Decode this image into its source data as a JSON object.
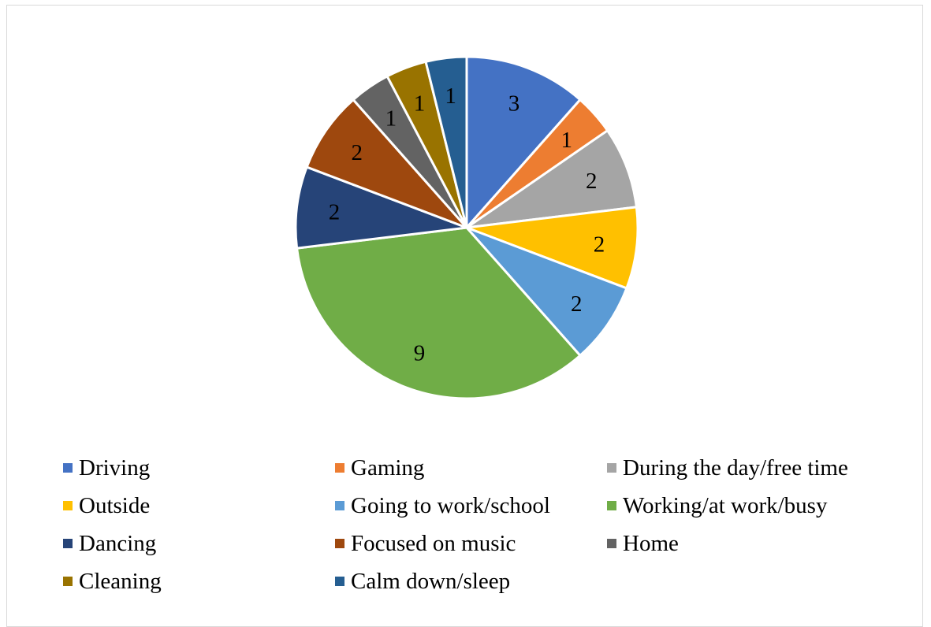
{
  "chart_data": {
    "type": "pie",
    "categories": [
      "Driving",
      "Gaming",
      "During the day/free time",
      "Outside",
      "Going to work/school",
      "Working/at work/busy",
      "Dancing",
      "Focused on music",
      "Home",
      "Cleaning",
      "Calm down/sleep"
    ],
    "values": [
      3,
      1,
      2,
      2,
      2,
      9,
      2,
      2,
      1,
      1,
      1
    ],
    "colors": [
      "#4472C4",
      "#ED7D31",
      "#A5A5A5",
      "#FFC000",
      "#5B9BD5",
      "#70AD47",
      "#264478",
      "#9E480E",
      "#636363",
      "#997300",
      "#255E91"
    ],
    "data_labels": [
      "3",
      "1",
      "2",
      "2",
      "2",
      "9",
      "2",
      "2",
      "1",
      "1",
      "1"
    ],
    "legend_position": "bottom"
  }
}
